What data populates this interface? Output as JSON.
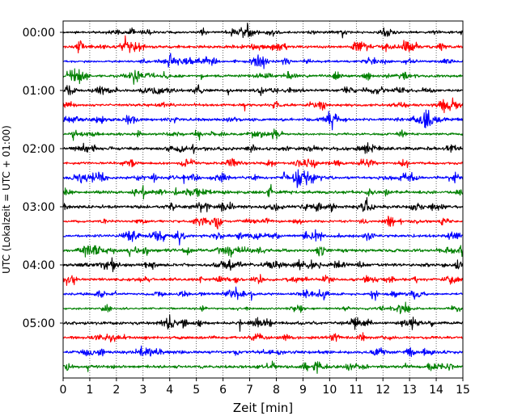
{
  "chart_data": {
    "type": "line",
    "title": "",
    "xlabel": "Zeit  [min]",
    "ylabel": "UTC (Lokalzeit = UTC + 01:00)",
    "xlim": [
      0,
      15
    ],
    "x_ticks": [
      "0",
      "1",
      "2",
      "3",
      "4",
      "5",
      "6",
      "7",
      "8",
      "9",
      "10",
      "11",
      "12",
      "13",
      "14",
      "15"
    ],
    "y_ticks": [
      {
        "label": "00:00",
        "trace": 0
      },
      {
        "label": "01:00",
        "trace": 4
      },
      {
        "label": "02:00",
        "trace": 8
      },
      {
        "label": "03:00",
        "trace": 12
      },
      {
        "label": "04:00",
        "trace": 16
      },
      {
        "label": "05:00",
        "trace": 20
      }
    ],
    "grid": "vertical-dotted",
    "trace_minutes": 15,
    "color_cycle": [
      "#000000",
      "#ff0000",
      "#0000ff",
      "#008000"
    ],
    "series": [
      {
        "start": "00:00",
        "color": "#000000"
      },
      {
        "start": "00:15",
        "color": "#ff0000"
      },
      {
        "start": "00:30",
        "color": "#0000ff"
      },
      {
        "start": "00:45",
        "color": "#008000"
      },
      {
        "start": "01:00",
        "color": "#000000"
      },
      {
        "start": "01:15",
        "color": "#ff0000"
      },
      {
        "start": "01:30",
        "color": "#0000ff"
      },
      {
        "start": "01:45",
        "color": "#008000"
      },
      {
        "start": "02:00",
        "color": "#000000"
      },
      {
        "start": "02:15",
        "color": "#ff0000"
      },
      {
        "start": "02:30",
        "color": "#0000ff",
        "event": {
          "minute": 8.8,
          "duration_min": 1.4
        }
      },
      {
        "start": "02:45",
        "color": "#008000"
      },
      {
        "start": "03:00",
        "color": "#000000"
      },
      {
        "start": "03:15",
        "color": "#ff0000"
      },
      {
        "start": "03:30",
        "color": "#0000ff"
      },
      {
        "start": "03:45",
        "color": "#008000"
      },
      {
        "start": "04:00",
        "color": "#000000"
      },
      {
        "start": "04:15",
        "color": "#ff0000"
      },
      {
        "start": "04:30",
        "color": "#0000ff"
      },
      {
        "start": "04:45",
        "color": "#008000"
      },
      {
        "start": "05:00",
        "color": "#000000"
      },
      {
        "start": "05:15",
        "color": "#ff0000"
      },
      {
        "start": "05:30",
        "color": "#0000ff"
      },
      {
        "start": "05:45",
        "color": "#008000"
      }
    ]
  }
}
